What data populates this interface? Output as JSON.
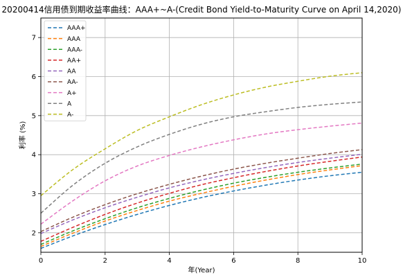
{
  "chart_data": {
    "type": "line",
    "title": "20200414信用债到期收益率曲线：AAA+~A-(Credit Bond Yield-to-Maturity Curve on April 14,2020)",
    "xlabel": "年(Year)",
    "ylabel": "利率 (%)",
    "xlim": [
      0,
      10
    ],
    "ylim": [
      1.5,
      7.5
    ],
    "xticks": [
      0,
      2,
      4,
      6,
      8,
      10
    ],
    "yticks": [
      2,
      3,
      4,
      5,
      6,
      7
    ],
    "grid": true,
    "legend_position": "top-left",
    "line_style": "dashed",
    "x": [
      0,
      1,
      2,
      3,
      4,
      5,
      6,
      7,
      8,
      9,
      10
    ],
    "series": [
      {
        "name": "AAA+",
        "color": "#1f77b4",
        "values": [
          1.6,
          1.92,
          2.21,
          2.47,
          2.7,
          2.9,
          3.07,
          3.22,
          3.35,
          3.46,
          3.55
        ]
      },
      {
        "name": "AAA",
        "color": "#ff7f0e",
        "values": [
          1.65,
          1.99,
          2.3,
          2.57,
          2.81,
          3.01,
          3.19,
          3.35,
          3.49,
          3.61,
          3.72
        ]
      },
      {
        "name": "AAA-",
        "color": "#2ca02c",
        "values": [
          1.7,
          2.05,
          2.36,
          2.64,
          2.88,
          3.09,
          3.27,
          3.42,
          3.55,
          3.66,
          3.76
        ]
      },
      {
        "name": "AA+",
        "color": "#d62728",
        "values": [
          1.78,
          2.14,
          2.47,
          2.76,
          3.01,
          3.23,
          3.41,
          3.57,
          3.71,
          3.83,
          3.94
        ]
      },
      {
        "name": "AA",
        "color": "#9467bd",
        "values": [
          1.98,
          2.33,
          2.64,
          2.91,
          3.15,
          3.35,
          3.52,
          3.67,
          3.8,
          3.91,
          4.01
        ]
      },
      {
        "name": "AA-",
        "color": "#8c564b",
        "values": [
          2.03,
          2.4,
          2.72,
          3.0,
          3.24,
          3.45,
          3.63,
          3.78,
          3.91,
          4.03,
          4.13
        ]
      },
      {
        "name": "A+",
        "color": "#e377c2",
        "values": [
          2.22,
          2.82,
          3.33,
          3.71,
          3.98,
          4.2,
          4.38,
          4.53,
          4.64,
          4.73,
          4.81
        ]
      },
      {
        "name": "A",
        "color": "#7f7f7f",
        "values": [
          2.5,
          3.22,
          3.78,
          4.2,
          4.52,
          4.78,
          4.97,
          5.1,
          5.21,
          5.29,
          5.35
        ]
      },
      {
        "name": "A-",
        "color": "#bcbd22",
        "values": [
          2.95,
          3.62,
          4.15,
          4.62,
          4.97,
          5.28,
          5.53,
          5.73,
          5.88,
          6.01,
          6.1
        ]
      }
    ]
  }
}
